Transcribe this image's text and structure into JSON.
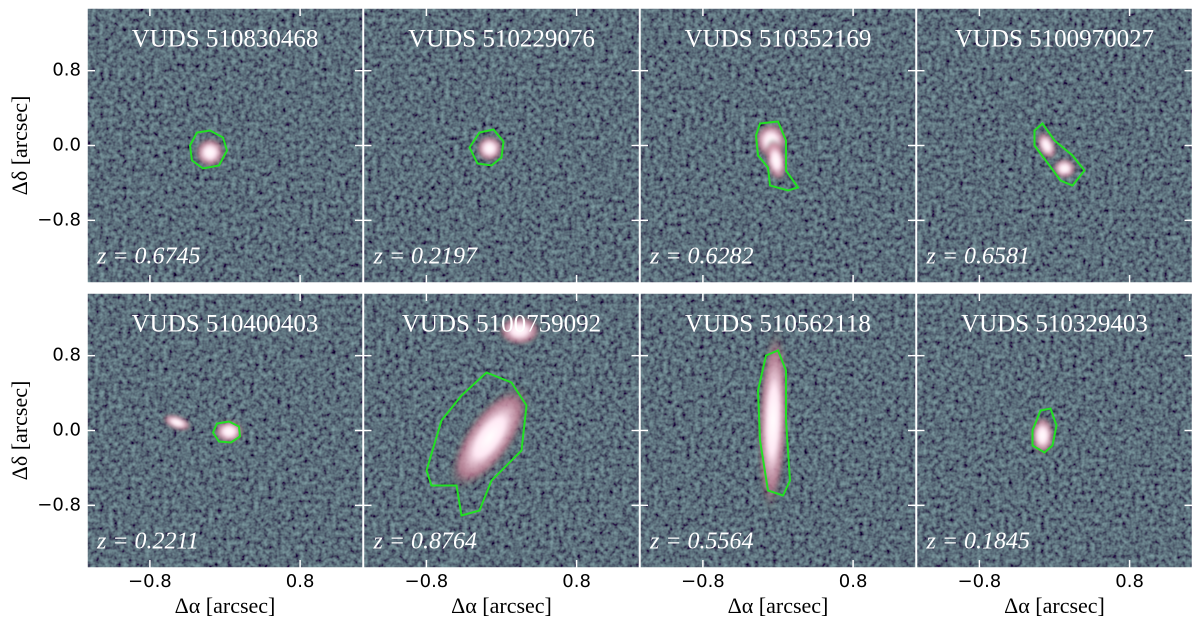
{
  "figure": {
    "x_label": "Δα [arcsec]",
    "y_label": "Δδ [arcsec]",
    "xlim": [
      -1.47,
      1.47
    ],
    "ylim": [
      -1.47,
      1.47
    ],
    "xticks": [
      {
        "value": -0.8,
        "label": "−0.8"
      },
      0.8
    ],
    "yticks": [
      0.8,
      {
        "value": 0,
        "label": "0.0"
      },
      {
        "value": -0.8,
        "label": "−0.8"
      }
    ],
    "contour_color": "#22e022",
    "panels": [
      {
        "title": "VUDS 510830468",
        "z_label": "z = 0.6745"
      },
      {
        "title": "VUDS 510229076",
        "z_label": "z = 0.2197"
      },
      {
        "title": "VUDS 510352169",
        "z_label": "z = 0.6282"
      },
      {
        "title": "VUDS 5100970027",
        "z_label": "z = 0.6581"
      },
      {
        "title": "VUDS 510400403",
        "z_label": "z = 0.2211"
      },
      {
        "title": "VUDS 5100759092",
        "z_label": "z = 0.8764"
      },
      {
        "title": "VUDS 510562118",
        "z_label": "z = 0.5564"
      },
      {
        "title": "VUDS 510329403",
        "z_label": "z = 0.1845"
      }
    ]
  }
}
